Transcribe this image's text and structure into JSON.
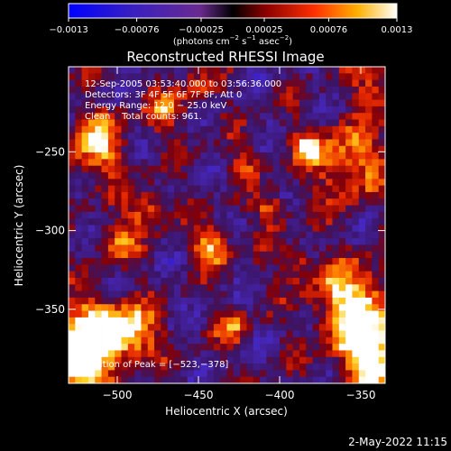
{
  "chart_data": {
    "type": "heatmap",
    "title": "Reconstructed RHESSI Image",
    "xlabel": "Heliocentric X (arcsec)",
    "ylabel": "Heliocentric Y (arcsec)",
    "xlim": [
      -530,
      -335
    ],
    "ylim": [
      -397,
      -196
    ],
    "xticks": [
      -500,
      -450,
      -400,
      -350
    ],
    "xtick_labels": [
      "−500",
      "−450",
      "−400",
      "−350"
    ],
    "yticks": [
      -250,
      -300,
      -350
    ],
    "ytick_labels": [
      "−250",
      "−300",
      "−350"
    ],
    "colorbar": {
      "range": [
        -0.0013,
        0.0013
      ],
      "ticks": [
        -0.0013,
        -0.00076,
        -0.00025,
        0.00025,
        0.00076,
        0.0013
      ],
      "tick_labels": [
        "−0.0013",
        "−0.00076",
        "−0.00025",
        "0.00025",
        "0.00076",
        "0.0013"
      ],
      "unit_parts": [
        "(photons cm",
        "−2",
        " s",
        "−1",
        " asec",
        "−2",
        ")"
      ]
    },
    "annotations": [
      "12-Sep-2005 03:53:40.000 to 03:56:36.000",
      "Detectors: 3F 4F 5F 6F 7F 8F, Att 0",
      "Energy Range: 12.0 − 25.0 keV",
      "Clean    Total counts: 961."
    ],
    "peak_label": "Position of Peak = [−523,−378]",
    "peak": [
      -523,
      -378
    ],
    "grid": false,
    "colormap": "blue-purple-red-yellow-white"
  },
  "footer": {
    "timestamp": "2-May-2022 11:15"
  }
}
